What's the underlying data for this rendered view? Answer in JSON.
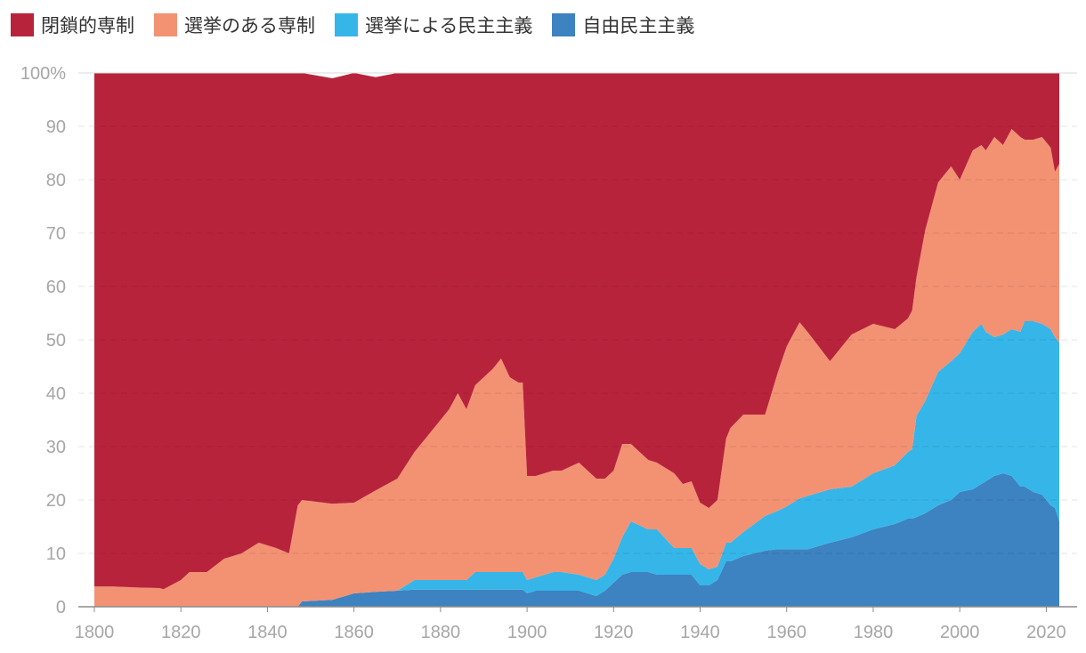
{
  "legend": [
    {
      "label": "閉鎖的専制",
      "color": "#b8233c"
    },
    {
      "label": "選挙のある専制",
      "color": "#f29273"
    },
    {
      "label": "選挙による民主主義",
      "color": "#36b6e8"
    },
    {
      "label": "自由民主主義",
      "color": "#3d82c1"
    }
  ],
  "chart_data": {
    "type": "area",
    "stacked": true,
    "percent": true,
    "xlim": [
      1800,
      2023
    ],
    "ylim": [
      0,
      100
    ],
    "x_ticks": [
      "1800",
      "1820",
      "1840",
      "1860",
      "1880",
      "1900",
      "1920",
      "1940",
      "1960",
      "1980",
      "2000",
      "2020"
    ],
    "y_ticks": [
      "0",
      "10",
      "20",
      "30",
      "40",
      "50",
      "60",
      "70",
      "80",
      "90",
      "100%"
    ],
    "grid": true,
    "legend_position": "top-left",
    "x": [
      1800,
      1804,
      1810,
      1815,
      1816,
      1820,
      1822,
      1824,
      1826,
      1830,
      1834,
      1838,
      1842,
      1845,
      1847,
      1848,
      1855,
      1860,
      1865,
      1870,
      1874,
      1878,
      1882,
      1884,
      1886,
      1888,
      1892,
      1894,
      1896,
      1898,
      1899,
      1900,
      1902,
      1906,
      1908,
      1912,
      1916,
      1918,
      1920,
      1922,
      1924,
      1928,
      1930,
      1934,
      1936,
      1938,
      1940,
      1942,
      1944,
      1946,
      1947,
      1950,
      1955,
      1958,
      1960,
      1963,
      1965,
      1970,
      1975,
      1980,
      1985,
      1988,
      1989,
      1990,
      1992,
      1995,
      1998,
      2000,
      2003,
      2005,
      2006,
      2008,
      2010,
      2012,
      2014,
      2015,
      2017,
      2019,
      2021,
      2022,
      2023
    ],
    "series": [
      {
        "name": "自由民主主義",
        "values": [
          0,
          0,
          0,
          0,
          0,
          0,
          0,
          0,
          0,
          0,
          0,
          0,
          0,
          0,
          0,
          1,
          1.3,
          2.5,
          2.8,
          3,
          3.2,
          3.2,
          3.2,
          3.2,
          3.2,
          3.2,
          3.2,
          3.2,
          3.2,
          3.2,
          3.2,
          2.5,
          3,
          3,
          3,
          3,
          2,
          3,
          4.5,
          6,
          6.5,
          6.5,
          6,
          6,
          6,
          6,
          4,
          4,
          5,
          8.5,
          8.5,
          9.5,
          10.5,
          10.8,
          10.8,
          10.8,
          10.8,
          12,
          13,
          14.5,
          15.5,
          16.5,
          16.5,
          16.8,
          17.5,
          19,
          20,
          21.5,
          22,
          23,
          23.5,
          24.5,
          25,
          24.5,
          22.5,
          22.5,
          21.5,
          21,
          19,
          18.5,
          16
        ]
      },
      {
        "name": "選挙による民主主義",
        "values": [
          0,
          0,
          0,
          0,
          0,
          0,
          0,
          0,
          0,
          0,
          0,
          0,
          0,
          0,
          0,
          0,
          0,
          0,
          0,
          0,
          1.8,
          1.8,
          1.8,
          1.8,
          1.8,
          3.3,
          3.3,
          3.3,
          3.3,
          3.3,
          3.3,
          2.5,
          2.5,
          3.5,
          3.5,
          3,
          3,
          3,
          4.5,
          7,
          9.5,
          8,
          8.5,
          5,
          5,
          5,
          4,
          3,
          2.5,
          3.5,
          3.5,
          4.5,
          6.5,
          7.2,
          8,
          9.5,
          10,
          10,
          9.5,
          10.5,
          11,
          12.5,
          13,
          19,
          21,
          25,
          26,
          26,
          29.5,
          30,
          28,
          26,
          26,
          27.5,
          29,
          31,
          32,
          32,
          33,
          32,
          33.5
        ]
      },
      {
        "name": "選挙のある専制",
        "values": [
          3.8,
          3.8,
          3.6,
          3.5,
          3.3,
          5,
          6.5,
          6.5,
          6.5,
          9,
          10,
          12,
          11,
          10,
          19,
          19,
          18,
          17,
          19,
          21,
          24,
          28,
          32,
          35,
          32,
          35,
          38,
          40,
          36.5,
          35.5,
          35.5,
          19.5,
          19,
          19,
          19,
          21,
          19,
          18,
          16.5,
          17.5,
          14.5,
          13,
          12.5,
          14,
          12,
          12.5,
          11.5,
          11.5,
          12.5,
          19.5,
          21.5,
          22,
          19,
          26,
          30,
          33,
          30.5,
          24,
          28.5,
          28,
          25.5,
          25,
          26,
          26,
          32,
          35.5,
          36.5,
          32.5,
          34,
          33.5,
          34,
          37.5,
          35.5,
          37.5,
          36.5,
          34,
          34,
          35,
          34,
          31,
          33.5
        ]
      },
      {
        "name": "閉鎖的専制",
        "values": [
          96.2,
          96.2,
          96.4,
          96.5,
          96.7,
          95,
          93.5,
          93.5,
          93.5,
          91,
          90,
          88,
          89,
          90,
          81,
          80,
          79.7,
          80.5,
          77.4,
          76,
          71,
          67,
          63,
          60,
          63,
          58.5,
          55.5,
          53.5,
          57,
          58,
          58,
          75.5,
          75.5,
          74.5,
          74.5,
          73,
          76,
          76,
          74.5,
          69.5,
          69.5,
          72.5,
          73,
          75,
          77,
          76.5,
          80.5,
          81.5,
          80,
          68.5,
          66.5,
          64,
          64,
          56,
          51.2,
          46.7,
          48.7,
          54,
          49,
          47,
          48,
          46,
          44.5,
          38.2,
          29.5,
          20.5,
          17.5,
          20,
          14.5,
          13.5,
          14.5,
          12,
          13.5,
          10.5,
          12,
          12.5,
          12.5,
          12,
          14,
          18.5,
          17
        ]
      }
    ]
  }
}
